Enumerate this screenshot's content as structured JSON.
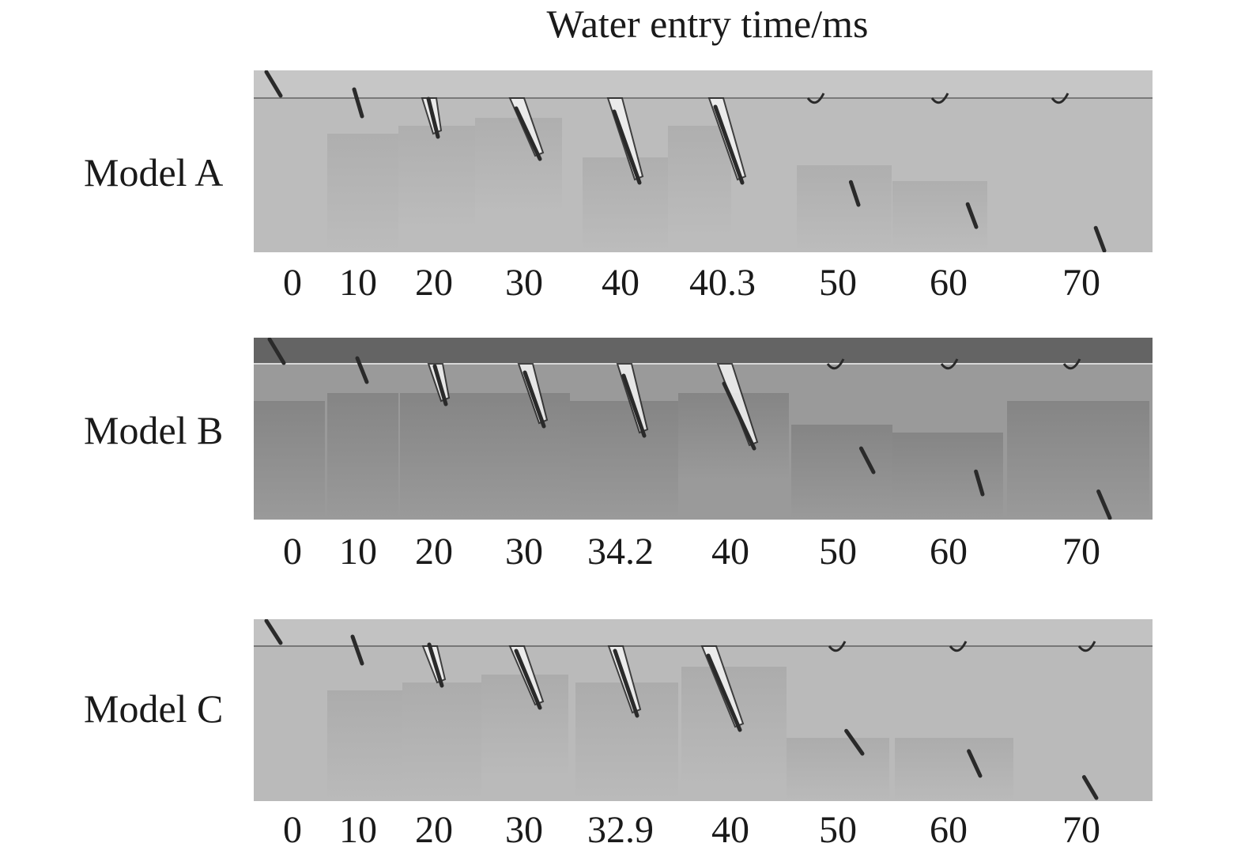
{
  "title": "Water entry time/ms",
  "rows": [
    {
      "label": "Model A",
      "times": [
        "0",
        "10",
        "20",
        "30",
        "40",
        "40.3",
        "50",
        "60",
        "70"
      ],
      "colors": {
        "sky": "#c6c6c6",
        "water": "#bcbcbc",
        "line": "#7a7a7a",
        "shade": "#a9a9a9"
      }
    },
    {
      "label": "Model B",
      "times": [
        "0",
        "10",
        "20",
        "30",
        "34.2",
        "40",
        "50",
        "60",
        "70"
      ],
      "colors": {
        "sky": "#646464",
        "water": "#9a9a9a",
        "line": "#d8d8d8",
        "shade": "#7c7c7c"
      }
    },
    {
      "label": "Model C",
      "times": [
        "0",
        "10",
        "20",
        "30",
        "32.9",
        "40",
        "50",
        "60",
        "70"
      ],
      "colors": {
        "sky": "#c2c2c2",
        "water": "#bababa",
        "line": "#777777",
        "shade": "#a6a6a6"
      }
    }
  ],
  "colors": {
    "object": "#2a2a2a",
    "cavity": "#f4f4f4"
  }
}
